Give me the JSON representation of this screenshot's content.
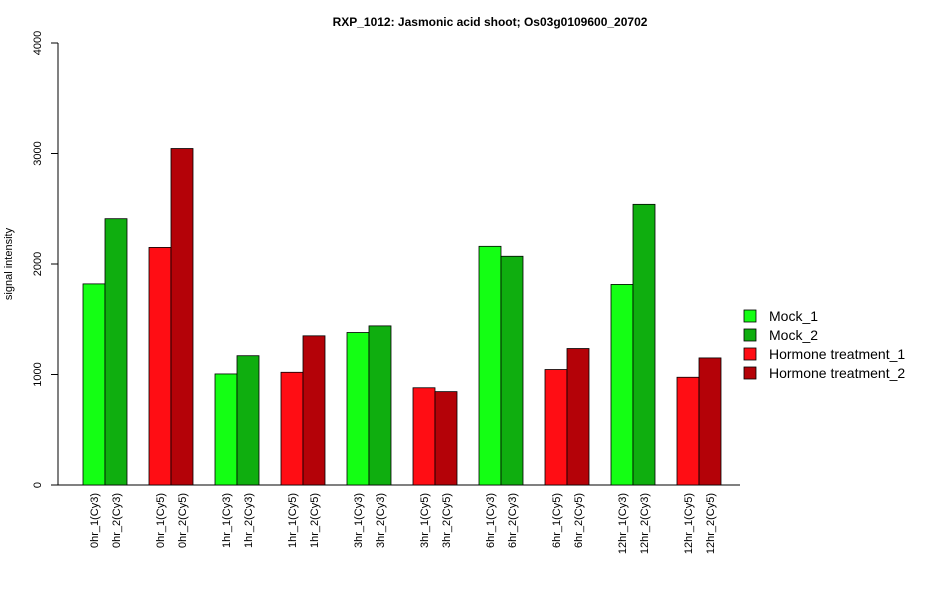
{
  "chart_data": {
    "type": "bar",
    "title": "RXP_1012: Jasmonic acid shoot; Os03g0109600_20702",
    "xlabel": "",
    "ylabel": "signal intensity",
    "ylim": [
      0,
      4000
    ],
    "yticks": [
      0,
      1000,
      2000,
      3000,
      4000
    ],
    "legend_position": "right",
    "legend": [
      {
        "name": "Mock_1",
        "color": "#14ff14"
      },
      {
        "name": "Mock_2",
        "color": "#0fae0f"
      },
      {
        "name": "Hormone treatment_1",
        "color": "#ff0d14"
      },
      {
        "name": "Hormone treatment_2",
        "color": "#b40208"
      }
    ],
    "groups": [
      {
        "bars": [
          {
            "label": "0hr_1(Cy3)",
            "value": 1820,
            "color": "#14ff14"
          },
          {
            "label": "0hr_2(Cy3)",
            "value": 2410,
            "color": "#0fae0f"
          }
        ]
      },
      {
        "bars": [
          {
            "label": "0hr_1(Cy5)",
            "value": 2150,
            "color": "#ff0d14"
          },
          {
            "label": "0hr_2(Cy5)",
            "value": 3045,
            "color": "#b40208"
          }
        ]
      },
      {
        "bars": [
          {
            "label": "1hr_1(Cy3)",
            "value": 1005,
            "color": "#14ff14"
          },
          {
            "label": "1hr_2(Cy3)",
            "value": 1170,
            "color": "#0fae0f"
          }
        ]
      },
      {
        "bars": [
          {
            "label": "1hr_1(Cy5)",
            "value": 1020,
            "color": "#ff0d14"
          },
          {
            "label": "1hr_2(Cy5)",
            "value": 1350,
            "color": "#b40208"
          }
        ]
      },
      {
        "bars": [
          {
            "label": "3hr_1(Cy3)",
            "value": 1380,
            "color": "#14ff14"
          },
          {
            "label": "3hr_2(Cy3)",
            "value": 1440,
            "color": "#0fae0f"
          }
        ]
      },
      {
        "bars": [
          {
            "label": "3hr_1(Cy5)",
            "value": 880,
            "color": "#ff0d14"
          },
          {
            "label": "3hr_2(Cy5)",
            "value": 845,
            "color": "#b40208"
          }
        ]
      },
      {
        "bars": [
          {
            "label": "6hr_1(Cy3)",
            "value": 2160,
            "color": "#14ff14"
          },
          {
            "label": "6hr_2(Cy3)",
            "value": 2070,
            "color": "#0fae0f"
          }
        ]
      },
      {
        "bars": [
          {
            "label": "6hr_1(Cy5)",
            "value": 1045,
            "color": "#ff0d14"
          },
          {
            "label": "6hr_2(Cy5)",
            "value": 1235,
            "color": "#b40208"
          }
        ]
      },
      {
        "bars": [
          {
            "label": "12hr_1(Cy3)",
            "value": 1815,
            "color": "#14ff14"
          },
          {
            "label": "12hr_2(Cy3)",
            "value": 2540,
            "color": "#0fae0f"
          }
        ]
      },
      {
        "bars": [
          {
            "label": "12hr_1(Cy5)",
            "value": 975,
            "color": "#ff0d14"
          },
          {
            "label": "12hr_2(Cy5)",
            "value": 1150,
            "color": "#b40208"
          }
        ]
      }
    ]
  }
}
